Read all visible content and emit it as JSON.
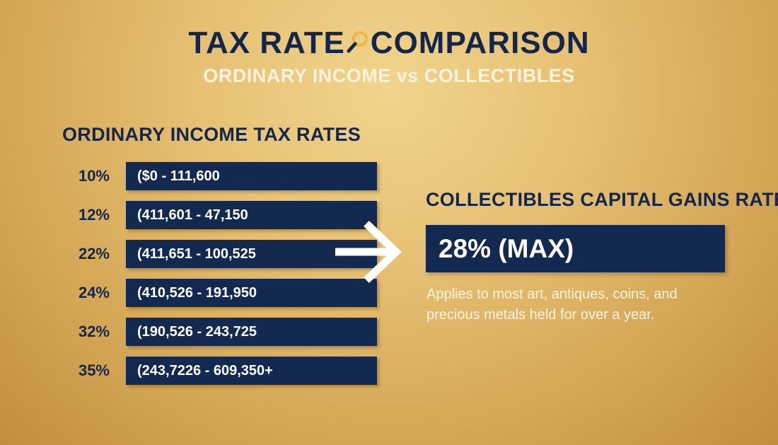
{
  "header": {
    "title_part1": "TAX RATE",
    "title_part2": "COMPARISON",
    "title_icon": "magnifier-icon",
    "subtitle": "ORDINARY INCOME vs COLLECTIBLES"
  },
  "ordinary": {
    "heading": "ORDINARY INCOME TAX RATES",
    "rows": [
      {
        "rate": "10%",
        "range": "($0 - 111,600"
      },
      {
        "rate": "12%",
        "range": "(411,601 - 47,150"
      },
      {
        "rate": "22%",
        "range": "(411,651 - 100,525"
      },
      {
        "rate": "24%",
        "range": "(410,526 - 191,950"
      },
      {
        "rate": "32%",
        "range": "(190,526 - 243,725"
      },
      {
        "rate": "35%",
        "range": "(243,7226 - 609,350+"
      }
    ]
  },
  "arrow_icon": "arrow-right-icon",
  "collectibles": {
    "heading": "COLLECTIBLES CAPITAL GAINS RATE",
    "rate": "28% (MAX)",
    "note": "Applies to most art, antiques, coins, and precious metals held for over a year."
  },
  "colors": {
    "navy": "#13294f",
    "gold": "#e6c074",
    "cream": "#fbf3df"
  }
}
